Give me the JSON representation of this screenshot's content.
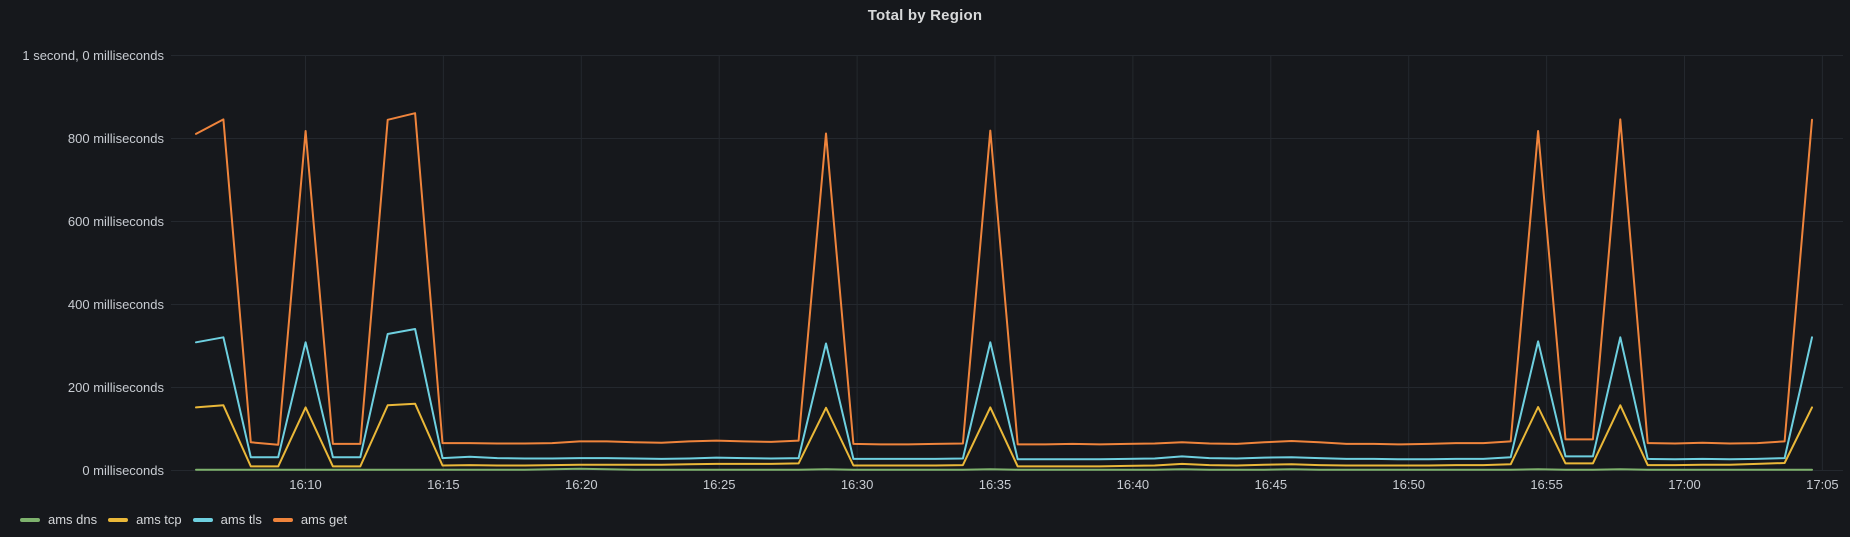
{
  "panel": {
    "title": "Total by Region",
    "background": "#16181c"
  },
  "y_axis": {
    "unit": "milliseconds",
    "ticks": [
      {
        "label": "1 second, 0 milliseconds",
        "value": 1000
      },
      {
        "label": "800 milliseconds",
        "value": 800
      },
      {
        "label": "600 milliseconds",
        "value": 600
      },
      {
        "label": "400 milliseconds",
        "value": 400
      },
      {
        "label": "200 milliseconds",
        "value": 200
      },
      {
        "label": "0 milliseconds",
        "value": 0
      }
    ]
  },
  "x_axis": {
    "ticks": [
      "16:10",
      "16:15",
      "16:20",
      "16:25",
      "16:30",
      "16:35",
      "16:40",
      "16:45",
      "16:50",
      "16:55",
      "17:00",
      "17:05"
    ]
  },
  "legend": {
    "items": [
      {
        "label": "ams dns",
        "color": "#7EB26D"
      },
      {
        "label": "ams tcp",
        "color": "#EAB839"
      },
      {
        "label": "ams tls",
        "color": "#6ED0E0"
      },
      {
        "label": "ams get",
        "color": "#EF843C"
      }
    ]
  },
  "chart_data": {
    "type": "line",
    "title": "Total by Region",
    "ylabel": "",
    "xlabel": "",
    "unit": "milliseconds",
    "ylim": [
      0,
      1000
    ],
    "grid": true,
    "legend_position": "bottom-left",
    "x": [
      "16:06",
      "16:07",
      "16:08",
      "16:09",
      "16:10",
      "16:11",
      "16:12",
      "16:13",
      "16:14",
      "16:15",
      "16:16",
      "16:17",
      "16:18",
      "16:19",
      "16:20",
      "16:21",
      "16:22",
      "16:23",
      "16:24",
      "16:25",
      "16:26",
      "16:27",
      "16:28",
      "16:29",
      "16:30",
      "16:31",
      "16:32",
      "16:33",
      "16:34",
      "16:35",
      "16:36",
      "16:37",
      "16:38",
      "16:39",
      "16:40",
      "16:41",
      "16:42",
      "16:43",
      "16:44",
      "16:45",
      "16:46",
      "16:47",
      "16:48",
      "16:49",
      "16:50",
      "16:51",
      "16:52",
      "16:53",
      "16:54",
      "16:55",
      "16:56",
      "16:57",
      "16:58",
      "16:59",
      "17:00",
      "17:01",
      "17:02",
      "17:03",
      "17:04",
      "17:05"
    ],
    "series": [
      {
        "name": "ams dns",
        "color": "#7EB26D",
        "values": [
          2,
          2,
          2,
          2,
          2,
          2,
          2,
          2,
          2,
          2,
          2,
          2,
          2,
          3,
          4,
          3,
          2,
          2,
          2,
          2,
          2,
          2,
          2,
          3,
          2,
          2,
          2,
          2,
          2,
          3,
          2,
          2,
          2,
          2,
          2,
          2,
          3,
          2,
          2,
          2,
          3,
          2,
          2,
          2,
          2,
          2,
          2,
          2,
          2,
          3,
          2,
          2,
          3,
          2,
          2,
          2,
          2,
          2,
          2,
          2
        ]
      },
      {
        "name": "ams tcp",
        "color": "#EAB839",
        "values": [
          152,
          157,
          10,
          10,
          152,
          10,
          10,
          157,
          161,
          12,
          13,
          12,
          12,
          13,
          14,
          14,
          14,
          14,
          15,
          16,
          16,
          16,
          17,
          151,
          12,
          12,
          12,
          12,
          13,
          152,
          10,
          10,
          10,
          10,
          11,
          12,
          16,
          13,
          12,
          14,
          15,
          13,
          12,
          12,
          12,
          12,
          13,
          13,
          15,
          153,
          17,
          17,
          157,
          13,
          13,
          14,
          14,
          16,
          18,
          152
        ]
      },
      {
        "name": "ams tls",
        "color": "#6ED0E0",
        "values": [
          309,
          321,
          32,
          32,
          309,
          32,
          32,
          329,
          341,
          30,
          33,
          30,
          29,
          29,
          30,
          30,
          29,
          28,
          29,
          31,
          30,
          29,
          30,
          306,
          28,
          28,
          28,
          28,
          29,
          309,
          27,
          27,
          27,
          27,
          28,
          29,
          34,
          30,
          29,
          31,
          32,
          30,
          28,
          28,
          27,
          27,
          28,
          28,
          32,
          311,
          34,
          34,
          321,
          28,
          27,
          28,
          27,
          28,
          30,
          321
        ]
      },
      {
        "name": "ams get",
        "color": "#EF843C",
        "values": [
          811,
          846,
          68,
          62,
          818,
          64,
          64,
          845,
          861,
          66,
          66,
          65,
          65,
          66,
          70,
          70,
          68,
          67,
          70,
          72,
          70,
          69,
          72,
          812,
          64,
          63,
          63,
          64,
          65,
          819,
          63,
          63,
          64,
          63,
          64,
          65,
          68,
          65,
          64,
          68,
          71,
          68,
          64,
          64,
          63,
          64,
          66,
          66,
          70,
          818,
          75,
          75,
          846,
          66,
          65,
          67,
          65,
          66,
          70,
          845
        ]
      }
    ]
  }
}
